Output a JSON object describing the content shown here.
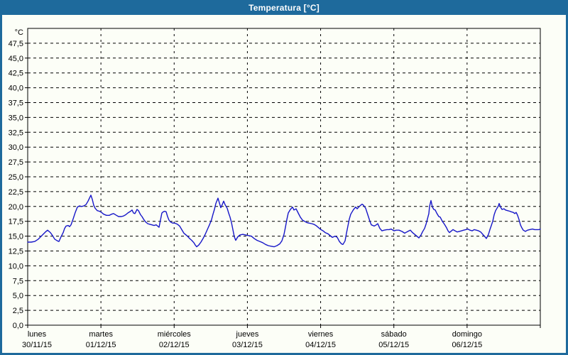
{
  "window": {
    "title": "Temperatura [°C]",
    "title_bar_color": "#1e6a9c",
    "frame_color": "#1e6a9c",
    "background_color": "#fcfef7"
  },
  "chart_data": {
    "type": "line",
    "title": "Temperatura [°C]",
    "grid": "dashed",
    "legend": "none",
    "y_axis": {
      "unit_label": "°C",
      "min": 0,
      "max": 50,
      "tick_step": 2.5,
      "tick_labels": [
        "0,0",
        "2,5",
        "5,0",
        "7,5",
        "10,0",
        "12,5",
        "15,0",
        "17,5",
        "20,0",
        "22,5",
        "25,0",
        "27,5",
        "30,0",
        "32,5",
        "35,0",
        "37,5",
        "40,0",
        "42,5",
        "45,0",
        "47,5"
      ],
      "decimal_separator": ","
    },
    "x_axis": {
      "days": [
        {
          "name": "lunes",
          "date": "30/11/15"
        },
        {
          "name": "martes",
          "date": "01/12/15"
        },
        {
          "name": "miércoles",
          "date": "02/12/15"
        },
        {
          "name": "jueves",
          "date": "03/12/15"
        },
        {
          "name": "viernes",
          "date": "04/12/15"
        },
        {
          "name": "sábado",
          "date": "05/12/15"
        },
        {
          "name": "domingo",
          "date": "06/12/15"
        }
      ]
    },
    "series": [
      {
        "name": "Temperatura",
        "color": "#1616c8",
        "x_unit": "px_plot",
        "y_unit": "°C",
        "points": [
          [
            39,
            14.0
          ],
          [
            44,
            14.0
          ],
          [
            49,
            14.1
          ],
          [
            54,
            14.5
          ],
          [
            59,
            15.1
          ],
          [
            64,
            15.7
          ],
          [
            67,
            16.0
          ],
          [
            71,
            15.6
          ],
          [
            74,
            15.1
          ],
          [
            77,
            14.5
          ],
          [
            81,
            14.2
          ],
          [
            83,
            14.1
          ],
          [
            86,
            14.9
          ],
          [
            89,
            15.6
          ],
          [
            91,
            16.3
          ],
          [
            93,
            16.7
          ],
          [
            96,
            16.8
          ],
          [
            98,
            16.6
          ],
          [
            100,
            16.9
          ],
          [
            103,
            17.9
          ],
          [
            106,
            19.0
          ],
          [
            109,
            19.9
          ],
          [
            112,
            20.1
          ],
          [
            115,
            20.0
          ],
          [
            118,
            20.1
          ],
          [
            121,
            20.3
          ],
          [
            124,
            20.9
          ],
          [
            126,
            21.4
          ],
          [
            128,
            21.9
          ],
          [
            130,
            21.2
          ],
          [
            132,
            20.2
          ],
          [
            134,
            19.7
          ],
          [
            137,
            19.3
          ],
          [
            140,
            19.2
          ],
          [
            143,
            19.0
          ],
          [
            146,
            18.7
          ],
          [
            150,
            18.5
          ],
          [
            154,
            18.5
          ],
          [
            157,
            18.7
          ],
          [
            160,
            18.8
          ],
          [
            164,
            18.5
          ],
          [
            167,
            18.3
          ],
          [
            171,
            18.3
          ],
          [
            174,
            18.4
          ],
          [
            177,
            18.6
          ],
          [
            180,
            18.9
          ],
          [
            184,
            19.2
          ],
          [
            186,
            19.4
          ],
          [
            188,
            18.9
          ],
          [
            190,
            18.8
          ],
          [
            193,
            19.5
          ],
          [
            195,
            19.3
          ],
          [
            198,
            18.6
          ],
          [
            200,
            18.3
          ],
          [
            202,
            17.9
          ],
          [
            205,
            17.4
          ],
          [
            208,
            17.1
          ],
          [
            211,
            17.0
          ],
          [
            214,
            16.9
          ],
          [
            217,
            16.8
          ],
          [
            220,
            16.9
          ],
          [
            222,
            16.7
          ],
          [
            224,
            16.5
          ],
          [
            226,
            17.7
          ],
          [
            228,
            18.9
          ],
          [
            230,
            19.1
          ],
          [
            232,
            19.2
          ],
          [
            234,
            19.1
          ],
          [
            236,
            18.3
          ],
          [
            238,
            17.7
          ],
          [
            240,
            17.4
          ],
          [
            243,
            17.2
          ],
          [
            246,
            17.2
          ],
          [
            248,
            17.1
          ],
          [
            250,
            17.0
          ],
          [
            253,
            16.7
          ],
          [
            255,
            16.3
          ],
          [
            257,
            15.9
          ],
          [
            259,
            15.5
          ],
          [
            262,
            15.2
          ],
          [
            264,
            15.0
          ],
          [
            267,
            14.6
          ],
          [
            270,
            14.3
          ],
          [
            273,
            13.9
          ],
          [
            275,
            13.5
          ],
          [
            277,
            13.2
          ],
          [
            280,
            13.5
          ],
          [
            283,
            14.0
          ],
          [
            286,
            14.6
          ],
          [
            289,
            15.3
          ],
          [
            292,
            16.1
          ],
          [
            295,
            16.9
          ],
          [
            298,
            17.8
          ],
          [
            300,
            18.7
          ],
          [
            302,
            19.5
          ],
          [
            304,
            20.5
          ],
          [
            306,
            21.1
          ],
          [
            307,
            21.4
          ],
          [
            309,
            20.6
          ],
          [
            311,
            19.8
          ],
          [
            313,
            20.3
          ],
          [
            315,
            20.9
          ],
          [
            317,
            20.3
          ],
          [
            320,
            19.7
          ],
          [
            322,
            18.9
          ],
          [
            324,
            18.2
          ],
          [
            326,
            17.3
          ],
          [
            328,
            16.1
          ],
          [
            330,
            14.9
          ],
          [
            332,
            14.3
          ],
          [
            335,
            14.9
          ],
          [
            338,
            15.2
          ],
          [
            342,
            15.3
          ],
          [
            346,
            15.2
          ],
          [
            350,
            15.1
          ],
          [
            354,
            15.0
          ],
          [
            358,
            14.6
          ],
          [
            362,
            14.3
          ],
          [
            366,
            14.1
          ],
          [
            370,
            13.9
          ],
          [
            374,
            13.6
          ],
          [
            378,
            13.4
          ],
          [
            382,
            13.3
          ],
          [
            386,
            13.2
          ],
          [
            390,
            13.4
          ],
          [
            394,
            13.7
          ],
          [
            397,
            14.2
          ],
          [
            400,
            15.3
          ],
          [
            402,
            16.5
          ],
          [
            404,
            17.8
          ],
          [
            406,
            18.9
          ],
          [
            409,
            19.5
          ],
          [
            412,
            19.9
          ],
          [
            414,
            19.4
          ],
          [
            417,
            19.6
          ],
          [
            420,
            18.9
          ],
          [
            423,
            18.2
          ],
          [
            426,
            17.7
          ],
          [
            429,
            17.5
          ],
          [
            432,
            17.3
          ],
          [
            435,
            17.2
          ],
          [
            439,
            17.1
          ],
          [
            442,
            17.0
          ],
          [
            445,
            16.8
          ],
          [
            448,
            16.5
          ],
          [
            452,
            16.1
          ],
          [
            455,
            15.9
          ],
          [
            458,
            15.6
          ],
          [
            462,
            15.4
          ],
          [
            465,
            15.1
          ],
          [
            468,
            14.8
          ],
          [
            472,
            15.0
          ],
          [
            475,
            14.8
          ],
          [
            478,
            14.1
          ],
          [
            481,
            13.7
          ],
          [
            483,
            13.6
          ],
          [
            486,
            14.2
          ],
          [
            488,
            15.5
          ],
          [
            490,
            16.7
          ],
          [
            492,
            17.9
          ],
          [
            494,
            18.7
          ],
          [
            496,
            19.1
          ],
          [
            498,
            19.5
          ],
          [
            501,
            19.9
          ],
          [
            503,
            19.6
          ],
          [
            506,
            20.0
          ],
          [
            508,
            20.2
          ],
          [
            510,
            20.4
          ],
          [
            512,
            20.2
          ],
          [
            515,
            19.7
          ],
          [
            518,
            18.6
          ],
          [
            521,
            17.5
          ],
          [
            523,
            16.9
          ],
          [
            527,
            16.7
          ],
          [
            530,
            16.9
          ],
          [
            532,
            17.1
          ],
          [
            535,
            16.3
          ],
          [
            538,
            15.9
          ],
          [
            541,
            16.0
          ],
          [
            545,
            16.1
          ],
          [
            548,
            16.1
          ],
          [
            551,
            16.2
          ],
          [
            555,
            15.9
          ],
          [
            558,
            16.0
          ],
          [
            562,
            16.0
          ],
          [
            566,
            15.8
          ],
          [
            570,
            15.5
          ],
          [
            573,
            15.7
          ],
          [
            576,
            15.9
          ],
          [
            578,
            16.0
          ],
          [
            581,
            15.6
          ],
          [
            584,
            15.3
          ],
          [
            587,
            15.0
          ],
          [
            590,
            14.7
          ],
          [
            593,
            15.2
          ],
          [
            595,
            15.7
          ],
          [
            598,
            16.3
          ],
          [
            600,
            17.0
          ],
          [
            602,
            17.9
          ],
          [
            604,
            18.8
          ],
          [
            605,
            20.0
          ],
          [
            607,
            21.0
          ],
          [
            609,
            19.9
          ],
          [
            611,
            19.5
          ],
          [
            613,
            19.4
          ],
          [
            615,
            18.9
          ],
          [
            618,
            18.3
          ],
          [
            620,
            18.2
          ],
          [
            623,
            17.5
          ],
          [
            626,
            17.0
          ],
          [
            629,
            16.4
          ],
          [
            631,
            15.9
          ],
          [
            633,
            15.6
          ],
          [
            636,
            15.9
          ],
          [
            638,
            16.1
          ],
          [
            641,
            15.9
          ],
          [
            644,
            15.7
          ],
          [
            647,
            15.8
          ],
          [
            650,
            15.9
          ],
          [
            653,
            16.0
          ],
          [
            656,
            16.1
          ],
          [
            659,
            16.2
          ],
          [
            662,
            16.0
          ],
          [
            665,
            15.9
          ],
          [
            668,
            16.1
          ],
          [
            671,
            16.0
          ],
          [
            674,
            15.9
          ],
          [
            677,
            15.7
          ],
          [
            680,
            15.3
          ],
          [
            683,
            14.9
          ],
          [
            685,
            14.6
          ],
          [
            688,
            15.3
          ],
          [
            690,
            16.1
          ],
          [
            692,
            16.8
          ],
          [
            694,
            17.5
          ],
          [
            696,
            18.6
          ],
          [
            698,
            19.3
          ],
          [
            700,
            19.7
          ],
          [
            702,
            20.1
          ],
          [
            703,
            20.5
          ],
          [
            705,
            19.9
          ],
          [
            707,
            19.5
          ],
          [
            710,
            19.6
          ],
          [
            712,
            19.4
          ],
          [
            715,
            19.3
          ],
          [
            718,
            19.2
          ],
          [
            720,
            19.1
          ],
          [
            723,
            19.0
          ],
          [
            725,
            18.8
          ],
          [
            727,
            19.0
          ],
          [
            729,
            18.5
          ],
          [
            731,
            17.8
          ],
          [
            733,
            16.9
          ],
          [
            735,
            16.4
          ],
          [
            737,
            16.0
          ],
          [
            740,
            15.8
          ],
          [
            743,
            16.0
          ],
          [
            746,
            16.1
          ],
          [
            750,
            16.2
          ],
          [
            753,
            16.1
          ],
          [
            756,
            16.1
          ],
          [
            759,
            16.1
          ],
          [
            761,
            16.2
          ]
        ]
      }
    ]
  }
}
